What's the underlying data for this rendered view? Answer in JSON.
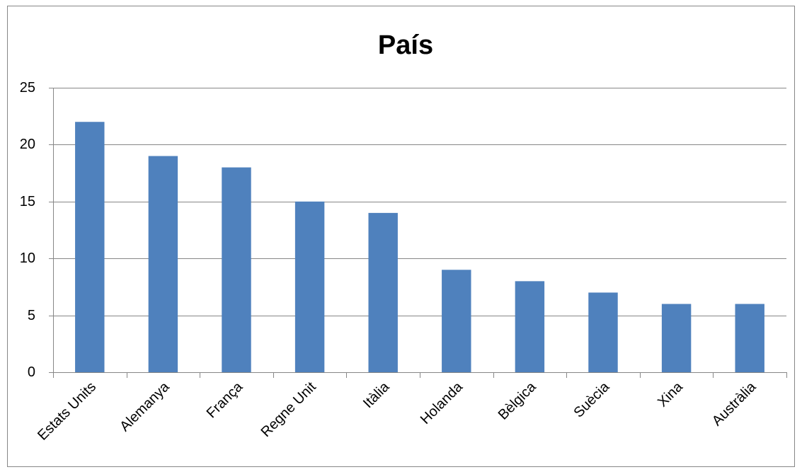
{
  "chart_data": {
    "type": "bar",
    "title": "País",
    "categories": [
      "Estats Units",
      "Alemanya",
      "França",
      "Regne Unit",
      "Itàlia",
      "Holanda",
      "Bèlgica",
      "Suècia",
      "Xina",
      "Austràlia"
    ],
    "values": [
      22,
      19,
      18,
      15,
      14,
      9,
      8,
      7,
      6,
      6
    ],
    "color": "#4f81bd",
    "ylim": [
      0,
      25
    ],
    "yticks": [
      0,
      5,
      10,
      15,
      20,
      25
    ],
    "grid": true
  }
}
